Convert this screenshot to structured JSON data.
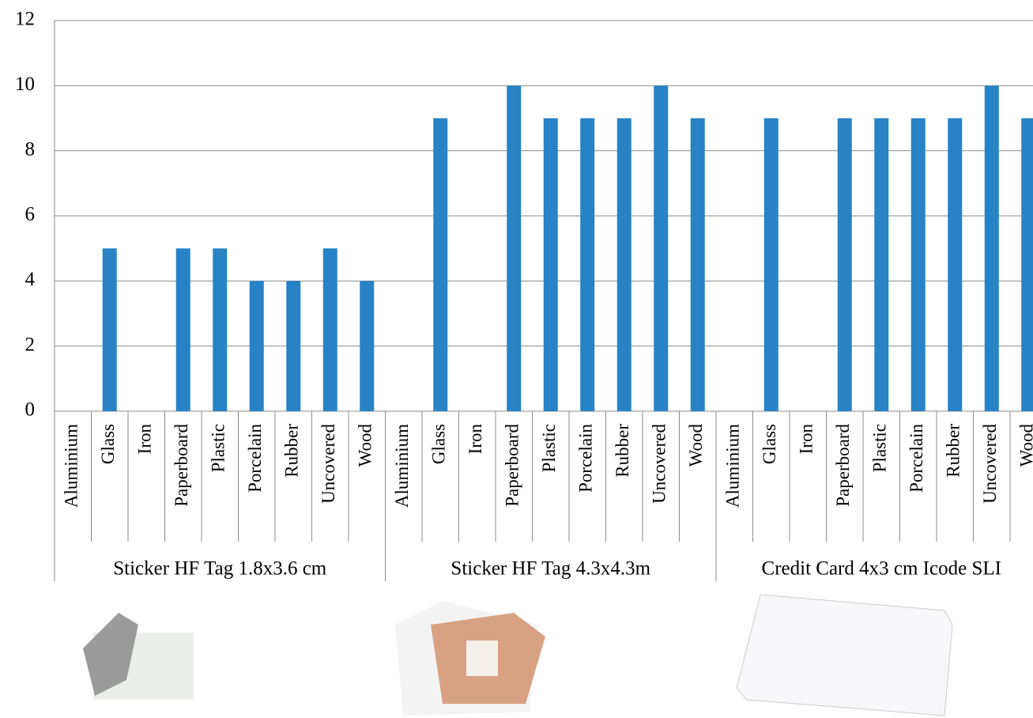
{
  "chart_data": {
    "type": "bar",
    "categories": [
      "Aluminium",
      "Glass",
      "Iron",
      "Paperboard",
      "Plastic",
      "Porcelain",
      "Rubber",
      "Uncovered",
      "Wood",
      "Aluminium",
      "Glass",
      "Iron",
      "Paperboard",
      "Plastic",
      "Porcelain",
      "Rubber",
      "Uncovered",
      "Wood",
      "Aluminium",
      "Glass",
      "Iron",
      "Paperboard",
      "Plastic",
      "Porcelain",
      "Rubber",
      "Uncovered",
      "Wood"
    ],
    "groups": [
      "Sticker HF Tag 1.8x3.6 cm",
      "Sticker HF Tag 4.3x4.3m",
      "Credit Card 4x3 cm Icode SLI"
    ],
    "values": [
      0,
      5,
      0,
      5,
      5,
      4,
      4,
      5,
      4,
      0,
      9,
      0,
      10,
      9,
      9,
      9,
      10,
      9,
      0,
      9,
      0,
      9,
      9,
      9,
      9,
      10,
      9
    ],
    "color": "#2783c6",
    "ylim": [
      0,
      12
    ],
    "yticks": [
      0,
      2,
      4,
      6,
      8,
      10,
      12
    ],
    "grid": true
  }
}
